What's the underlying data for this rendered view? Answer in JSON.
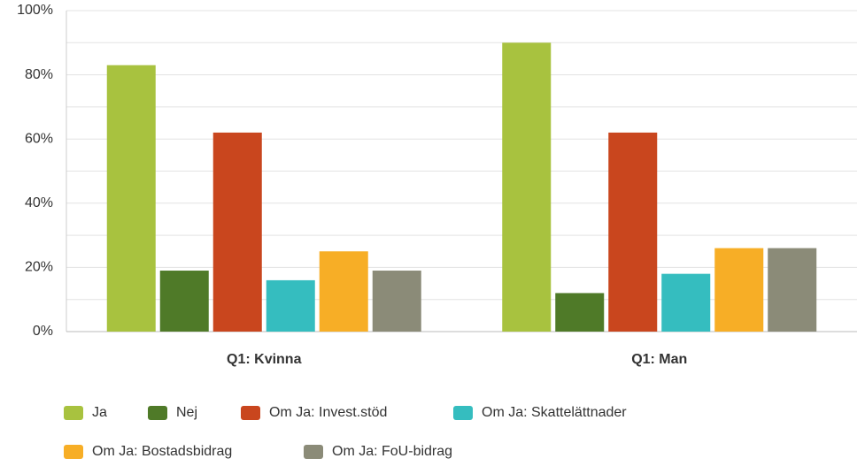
{
  "chart_data": {
    "type": "bar",
    "categories": [
      "Q1: Kvinna",
      "Q1: Man"
    ],
    "series": [
      {
        "name": "Ja",
        "color": "#a8c23f",
        "values": [
          83,
          90
        ]
      },
      {
        "name": "Nej",
        "color": "#4f7a28",
        "values": [
          19,
          12
        ]
      },
      {
        "name": "Om Ja: Invest.stöd",
        "color": "#c9461e",
        "values": [
          62,
          62
        ]
      },
      {
        "name": "Om Ja: Skattelättnader",
        "color": "#35bdbf",
        "values": [
          16,
          18
        ]
      },
      {
        "name": "Om Ja: Bostadsbidrag",
        "color": "#f7ae26",
        "values": [
          25,
          26
        ]
      },
      {
        "name": "Om Ja: FoU-bidrag",
        "color": "#8b8b78",
        "values": [
          19,
          26
        ]
      }
    ],
    "ylim": [
      0,
      100
    ],
    "yticks": [
      {
        "value": 0,
        "label": "0%"
      },
      {
        "value": 20,
        "label": "20%"
      },
      {
        "value": 40,
        "label": "40%"
      },
      {
        "value": 60,
        "label": "60%"
      },
      {
        "value": 80,
        "label": "80%"
      },
      {
        "value": 100,
        "label": "100%"
      }
    ],
    "minor_yticks": [
      10,
      30,
      50,
      70,
      90
    ],
    "grid": true,
    "legend": "bottom"
  }
}
